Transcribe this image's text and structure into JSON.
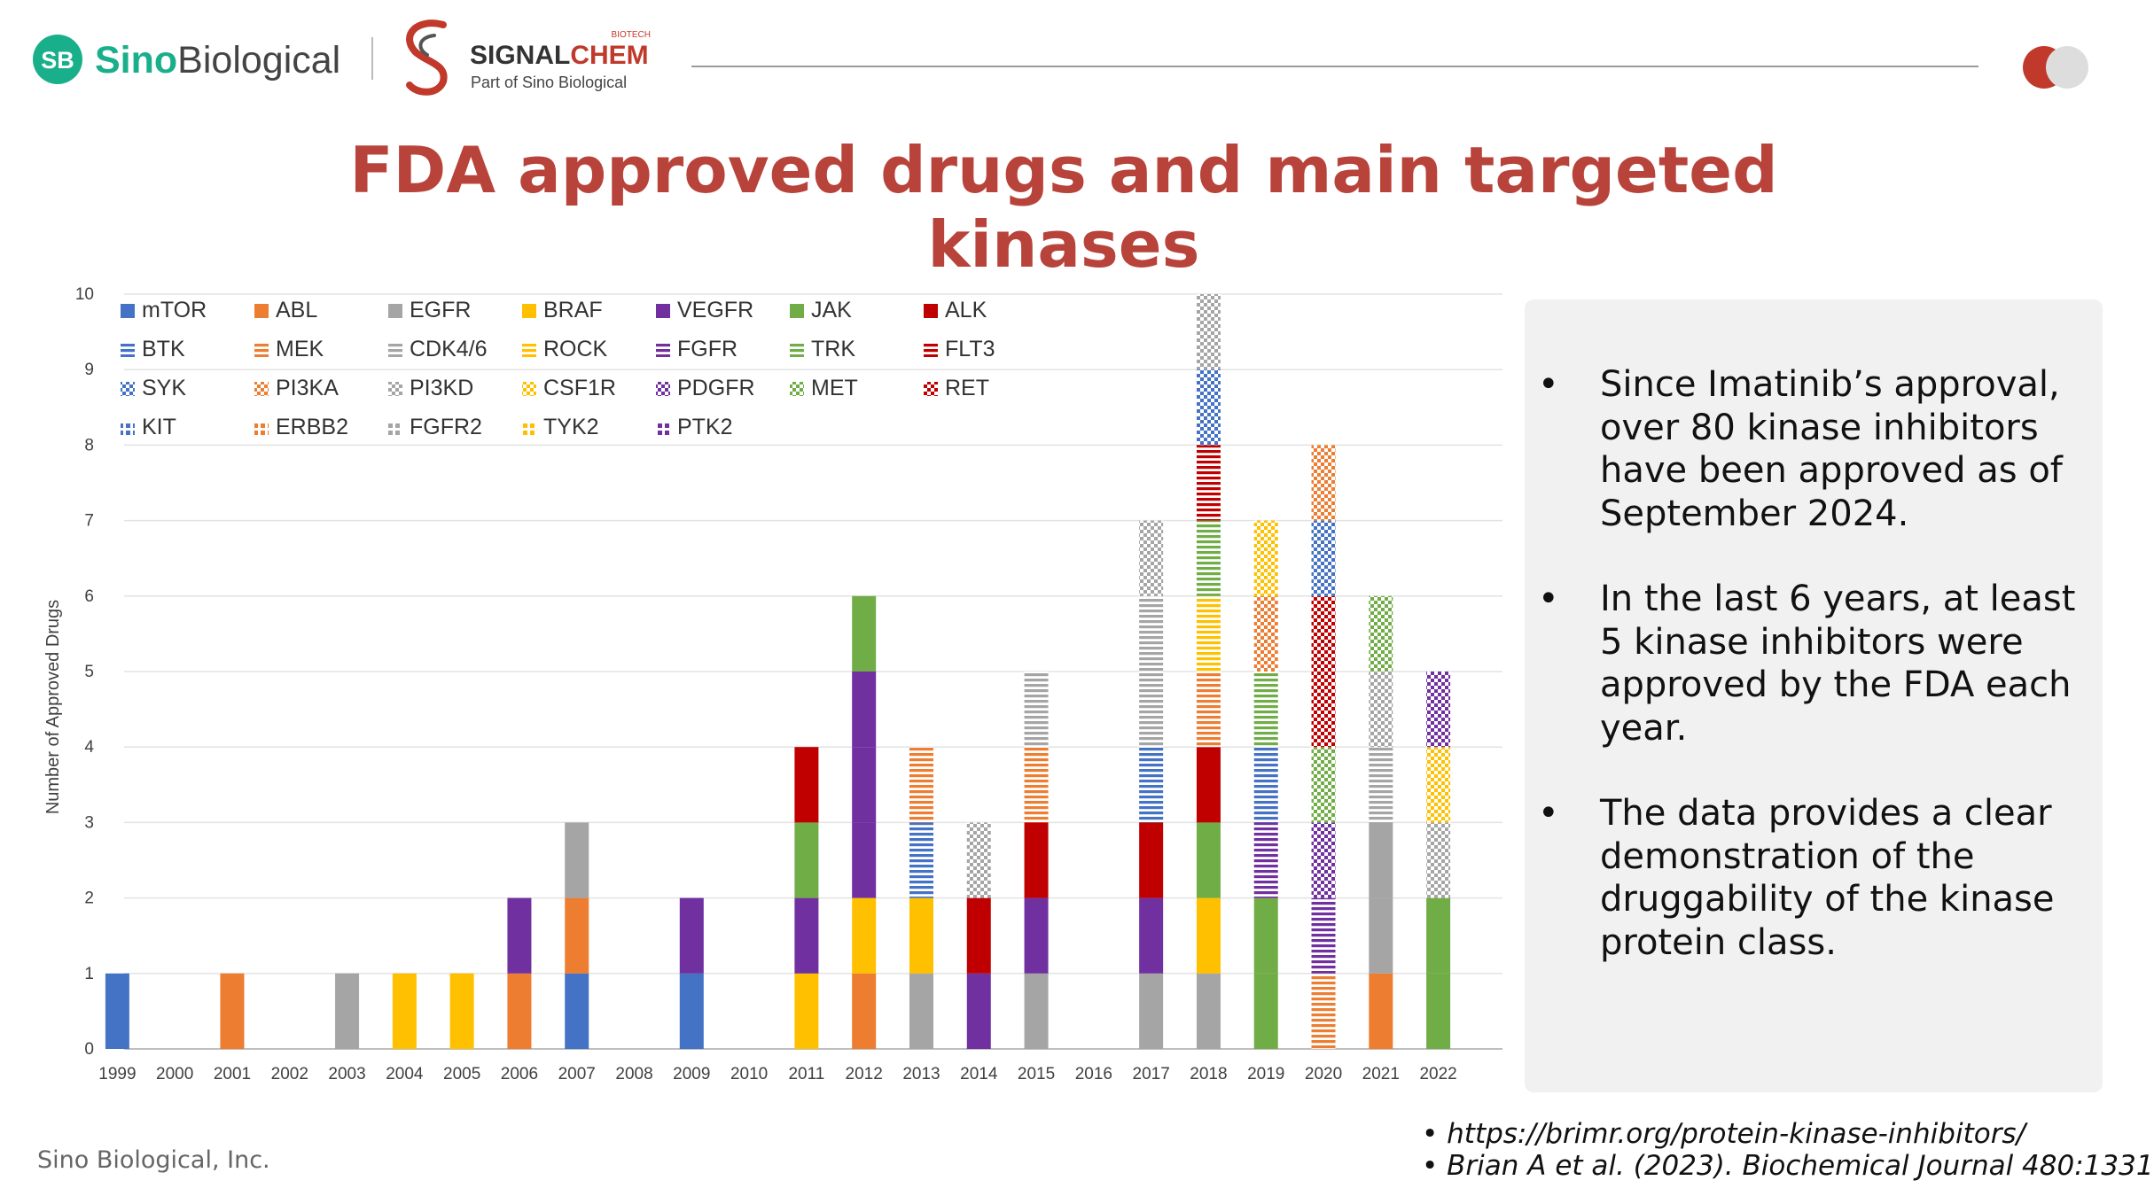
{
  "header": {
    "brand_name_sino": "Sino",
    "brand_name_biological": "Biological",
    "brand_badge": "SB",
    "partner_name_signal": "SIGNAL",
    "partner_name_chem": "CHEM",
    "partner_superscript": "BIOTECH",
    "partner_tagline": "Part of Sino Biological",
    "accent_red": "#c0392b",
    "accent_green": "#1aaf8b",
    "toggle_icon": "toggle-icon"
  },
  "slide": {
    "title_line1": "FDA approved drugs and main targeted",
    "title_line2": "kinases",
    "title_color": "#b8433a"
  },
  "bullets": [
    {
      "marker": "•",
      "lines": [
        "Since Imatinib’s approval,",
        "over 80 kinase inhibitors",
        "have been approved as of",
        "September 2024."
      ]
    },
    {
      "marker": "•",
      "lines": [
        "In the last 6 years, at least",
        "5 kinase inhibitors were",
        "approved by the FDA each",
        "year."
      ]
    },
    {
      "marker": "•",
      "lines": [
        "The data provides a clear",
        "demonstration of the",
        "druggability of the kinase",
        "protein class."
      ]
    }
  ],
  "footer": {
    "company": "Sino Biological, Inc.",
    "references": [
      "• https://brimr.org/protein-kinase-inhibitors/",
      "• Brian A et al. (2023). Biochemical Journal 480:1331"
    ]
  },
  "chart_data": {
    "type": "bar",
    "stacked": true,
    "title": "",
    "xlabel": "",
    "ylabel": "Number of Approved Drugs",
    "ylim": [
      0,
      10
    ],
    "yticks": [
      0,
      1,
      2,
      3,
      4,
      5,
      6,
      7,
      8,
      9,
      10
    ],
    "grid": true,
    "legend_position": "top-left",
    "categories": [
      "1999",
      "2000",
      "2001",
      "2002",
      "2003",
      "2004",
      "2005",
      "2006",
      "2007",
      "2008",
      "2009",
      "2010",
      "2011",
      "2012",
      "2013",
      "2014",
      "2015",
      "2016",
      "2017",
      "2018",
      "2019",
      "2020",
      "2021",
      "2022"
    ],
    "legend": [
      {
        "name": "mTOR",
        "color": "#4472c4",
        "pattern": "solid"
      },
      {
        "name": "ABL",
        "color": "#ed7d31",
        "pattern": "solid"
      },
      {
        "name": "EGFR",
        "color": "#a5a5a5",
        "pattern": "solid"
      },
      {
        "name": "BRAF",
        "color": "#ffc000",
        "pattern": "solid"
      },
      {
        "name": "VEGFR",
        "color": "#7030a0",
        "pattern": "solid"
      },
      {
        "name": "JAK",
        "color": "#70ad47",
        "pattern": "solid"
      },
      {
        "name": "ALK",
        "color": "#c00000",
        "pattern": "solid"
      },
      {
        "name": "BTK",
        "color": "#4472c4",
        "pattern": "hstripe"
      },
      {
        "name": "MEK",
        "color": "#ed7d31",
        "pattern": "hstripe"
      },
      {
        "name": "CDK4/6",
        "color": "#a5a5a5",
        "pattern": "hstripe"
      },
      {
        "name": "ROCK",
        "color": "#ffc000",
        "pattern": "hstripe"
      },
      {
        "name": "FGFR",
        "color": "#7030a0",
        "pattern": "hstripe"
      },
      {
        "name": "TRK",
        "color": "#70ad47",
        "pattern": "hstripe"
      },
      {
        "name": "FLT3",
        "color": "#c00000",
        "pattern": "hstripe"
      },
      {
        "name": "SYK",
        "color": "#4472c4",
        "pattern": "checker"
      },
      {
        "name": "PI3KA",
        "color": "#ed7d31",
        "pattern": "checker"
      },
      {
        "name": "PI3KD",
        "color": "#a5a5a5",
        "pattern": "checker"
      },
      {
        "name": "CSF1R",
        "color": "#ffc000",
        "pattern": "checker"
      },
      {
        "name": "PDGFR",
        "color": "#7030a0",
        "pattern": "checker"
      },
      {
        "name": "MET",
        "color": "#70ad47",
        "pattern": "checker"
      },
      {
        "name": "RET",
        "color": "#c00000",
        "pattern": "checker"
      },
      {
        "name": "KIT",
        "color": "#4472c4",
        "pattern": "sparse"
      },
      {
        "name": "ERBB2",
        "color": "#ed7d31",
        "pattern": "sparse"
      },
      {
        "name": "FGFR2",
        "color": "#a5a5a5",
        "pattern": "sparse"
      },
      {
        "name": "TYK2",
        "color": "#ffc000",
        "pattern": "sparse"
      },
      {
        "name": "PTK2",
        "color": "#7030a0",
        "pattern": "sparse"
      }
    ],
    "stacks": {
      "1999": [
        "mTOR"
      ],
      "2000": [],
      "2001": [
        "ABL"
      ],
      "2002": [],
      "2003": [
        "EGFR"
      ],
      "2004": [
        "BRAF"
      ],
      "2005": [
        "BRAF"
      ],
      "2006": [
        "ABL",
        "VEGFR"
      ],
      "2007": [
        "mTOR",
        "ABL",
        "EGFR"
      ],
      "2008": [],
      "2009": [
        "mTOR",
        "VEGFR"
      ],
      "2010": [],
      "2011": [
        "BRAF",
        "VEGFR",
        "JAK",
        "ALK"
      ],
      "2012": [
        "ABL",
        "BRAF",
        "VEGFR",
        "VEGFR",
        "VEGFR",
        "JAK"
      ],
      "2013": [
        "EGFR",
        "BRAF",
        "BTK",
        "MEK"
      ],
      "2014": [
        "VEGFR",
        "ALK",
        "PI3KD"
      ],
      "2015": [
        "EGFR",
        "VEGFR",
        "ALK",
        "MEK",
        "CDK4/6"
      ],
      "2016": [],
      "2017": [
        "EGFR",
        "VEGFR",
        "ALK",
        "BTK",
        "CDK4/6",
        "CDK4/6",
        "PI3KD"
      ],
      "2018": [
        "EGFR",
        "BRAF",
        "JAK",
        "ALK",
        "MEK",
        "ROCK",
        "TRK",
        "FLT3",
        "SYK",
        "PI3KD"
      ],
      "2019": [
        "JAK",
        "JAK",
        "FGFR",
        "BTK",
        "TRK",
        "PI3KA",
        "CSF1R"
      ],
      "2020": [
        "MEK",
        "FGFR",
        "PDGFR",
        "MET",
        "RET",
        "RET",
        "SYK",
        "PI3KA"
      ],
      "2021": [
        "ABL",
        "EGFR",
        "EGFR",
        "CDK4/6",
        "PI3KD",
        "MET"
      ],
      "2022": [
        "JAK",
        "JAK",
        "PI3KD",
        "CSF1R",
        "PDGFR"
      ]
    }
  }
}
